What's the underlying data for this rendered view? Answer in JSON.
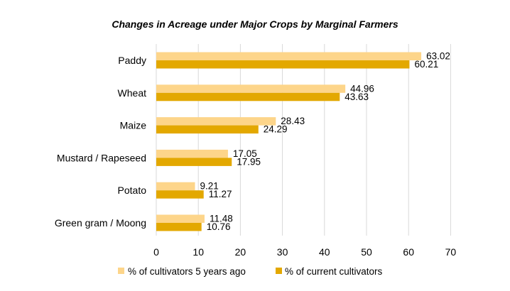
{
  "chart_data": {
    "type": "bar",
    "orientation": "horizontal",
    "title": "Changes in Acreage under Major Crops by Marginal Farmers",
    "categories": [
      "Paddy",
      "Wheat",
      "Maize",
      "Mustard / Rapeseed",
      "Potato",
      "Green gram / Moong"
    ],
    "series": [
      {
        "name": "% of cultivators 5 years ago",
        "values": [
          63.02,
          44.96,
          28.43,
          17.05,
          9.21,
          11.48
        ],
        "color": "#fdd58a"
      },
      {
        "name": "% of current cultivators",
        "values": [
          60.21,
          43.63,
          24.29,
          17.95,
          11.27,
          10.76
        ],
        "color": "#e3a800"
      }
    ],
    "xlim": [
      0,
      70
    ],
    "xticks": [
      0,
      10,
      20,
      30,
      40,
      50,
      60,
      70
    ],
    "grid": true,
    "legend_position": "bottom",
    "xlabel": "",
    "ylabel": ""
  }
}
